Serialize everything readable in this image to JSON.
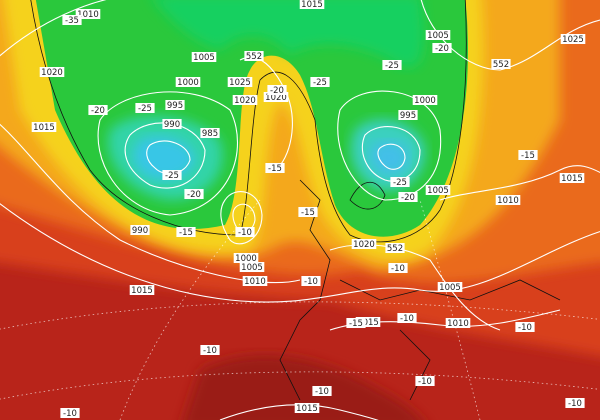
{
  "isobar_labels": [
    "1010",
    "1015",
    "1025",
    "1020",
    "1005",
    "1000",
    "995",
    "990",
    "985",
    "1025",
    "1020",
    "1020",
    "1015",
    "1005",
    "1000",
    "995",
    "1005",
    "1010",
    "1015",
    "990",
    "1000",
    "1005",
    "1010",
    "1020",
    "1005",
    "1015",
    "1015",
    "1010",
    "1015",
    "552",
    "552",
    "552"
  ],
  "temperature_labels": [
    "-35",
    "-20",
    "-25",
    "-25",
    "-20",
    "-15",
    "-10",
    "-15",
    "-20",
    "-25",
    "-20",
    "-25",
    "-25",
    "-20",
    "-15",
    "-15",
    "-10",
    "-10",
    "-10",
    "-10",
    "-10",
    "-10",
    "-10",
    "-10",
    "-10",
    "-15"
  ]
}
